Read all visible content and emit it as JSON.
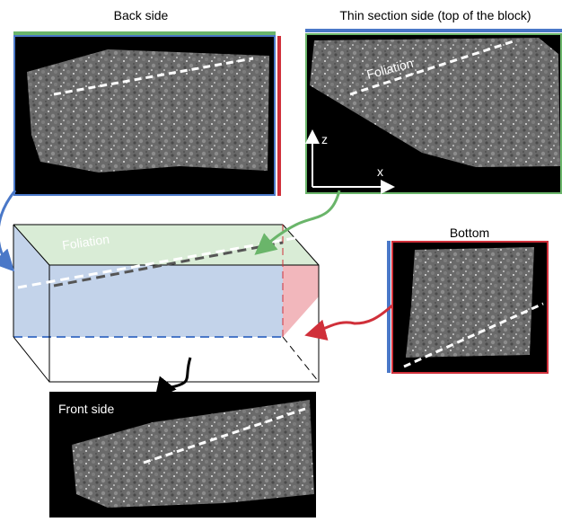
{
  "panels": {
    "back_side": {
      "title": "Back side"
    },
    "thin_section": {
      "title": "Thin section side (top of the block)",
      "annotation": "Foliation",
      "axis_z": "z",
      "axis_x": "x"
    },
    "block": {
      "annotation": "Foliation"
    },
    "bottom": {
      "title": "Bottom"
    },
    "front_side": {
      "title": "Front side"
    }
  }
}
